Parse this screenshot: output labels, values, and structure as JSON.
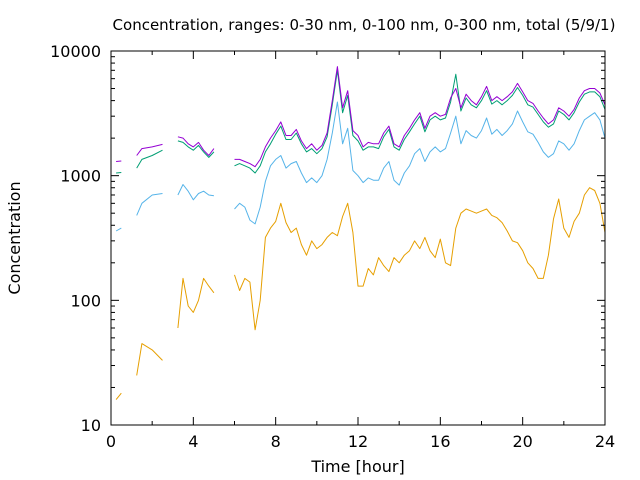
{
  "chart_data": {
    "type": "line",
    "title": "Concentration, ranges: 0-30 nm, 0-100 nm, 0-300 nm, total (5/9/1)",
    "xlabel": "Time [hour]",
    "ylabel": "Concentration",
    "xlim": [
      0,
      24
    ],
    "ylim": [
      10,
      10000
    ],
    "yscale": "log",
    "grid": false,
    "legend": "none",
    "x_ticks": [
      0,
      4,
      8,
      12,
      16,
      20,
      24
    ],
    "x_tick_labels": [
      "0",
      "4",
      "8",
      "12",
      "16",
      "20",
      "24"
    ],
    "y_ticks": [
      10,
      100,
      1000,
      10000
    ],
    "y_tick_labels": [
      "10",
      "100",
      "1000",
      "10000"
    ],
    "x": [
      0.25,
      0.5,
      1.0,
      1.25,
      1.5,
      2.0,
      2.5,
      3.0,
      3.25,
      3.5,
      3.75,
      4.0,
      4.25,
      4.5,
      4.75,
      5.0,
      5.5,
      6.0,
      6.25,
      6.5,
      6.75,
      7.0,
      7.25,
      7.5,
      7.75,
      8.0,
      8.25,
      8.5,
      8.75,
      9.0,
      9.25,
      9.5,
      9.75,
      10.0,
      10.25,
      10.5,
      10.75,
      11.0,
      11.25,
      11.5,
      11.75,
      12.0,
      12.25,
      12.5,
      12.75,
      13.0,
      13.25,
      13.5,
      13.75,
      14.0,
      14.25,
      14.5,
      14.75,
      15.0,
      15.25,
      15.5,
      15.75,
      16.0,
      16.25,
      16.5,
      16.75,
      17.0,
      17.25,
      17.5,
      17.75,
      18.0,
      18.25,
      18.5,
      18.75,
      19.0,
      19.25,
      19.5,
      19.75,
      20.0,
      20.25,
      20.5,
      20.75,
      21.0,
      21.25,
      21.5,
      21.75,
      22.0,
      22.25,
      22.5,
      22.75,
      23.0,
      23.25,
      23.5,
      23.75,
      24.0
    ],
    "series": [
      {
        "color": "#9400d3",
        "values": [
          1300,
          1310,
          null,
          1450,
          1650,
          1700,
          1780,
          null,
          2050,
          2000,
          1800,
          1700,
          1850,
          1600,
          1450,
          1650,
          null,
          1350,
          1350,
          1300,
          1250,
          1180,
          1350,
          1700,
          2000,
          2300,
          2700,
          2100,
          2100,
          2350,
          1900,
          1650,
          1800,
          1600,
          1750,
          2200,
          4000,
          7500,
          3500,
          4800,
          2300,
          2100,
          1700,
          1850,
          1800,
          1800,
          2200,
          2500,
          1800,
          1700,
          2100,
          2400,
          2800,
          3200,
          2400,
          3000,
          3200,
          3000,
          3100,
          4200,
          5000,
          3500,
          4500,
          4000,
          3700,
          4300,
          5200,
          4000,
          4300,
          4000,
          4300,
          4700,
          5500,
          4700,
          4000,
          3800,
          3300,
          2900,
          2600,
          2800,
          3500,
          3300,
          3000,
          3400,
          4200,
          4800,
          5000,
          5000,
          4600,
          3700
        ]
      },
      {
        "color": "#009e73",
        "values": [
          1050,
          1060,
          null,
          1150,
          1350,
          1450,
          1600,
          null,
          1900,
          1850,
          1700,
          1600,
          1750,
          1550,
          1400,
          1550,
          null,
          1200,
          1250,
          1200,
          1150,
          1050,
          1200,
          1550,
          1800,
          2150,
          2500,
          1950,
          1950,
          2200,
          1800,
          1550,
          1650,
          1500,
          1650,
          2050,
          3700,
          7000,
          3200,
          4400,
          2100,
          1900,
          1600,
          1700,
          1700,
          1650,
          2050,
          2350,
          1700,
          1600,
          1950,
          2250,
          2600,
          3000,
          2250,
          2800,
          3000,
          2800,
          2900,
          3900,
          6500,
          3300,
          4200,
          3700,
          3500,
          4000,
          4800,
          3750,
          4000,
          3700,
          4000,
          4400,
          5100,
          4400,
          3700,
          3550,
          3100,
          2700,
          2450,
          2600,
          3300,
          3100,
          2800,
          3200,
          3900,
          4500,
          4700,
          4700,
          4300,
          3400
        ]
      },
      {
        "color": "#56b4e9",
        "values": [
          360,
          380,
          null,
          480,
          600,
          700,
          720,
          null,
          700,
          850,
          750,
          640,
          720,
          750,
          700,
          690,
          null,
          540,
          600,
          560,
          440,
          410,
          560,
          900,
          1200,
          1350,
          1450,
          1150,
          1250,
          1300,
          1050,
          880,
          960,
          880,
          1000,
          1350,
          2200,
          3900,
          1800,
          2400,
          1100,
          1000,
          880,
          960,
          920,
          920,
          1150,
          1300,
          920,
          840,
          1050,
          1200,
          1500,
          1650,
          1300,
          1550,
          1700,
          1550,
          1650,
          2200,
          3000,
          1800,
          2300,
          2100,
          2000,
          2300,
          2900,
          2150,
          2350,
          2100,
          2300,
          2600,
          3300,
          2700,
          2250,
          2150,
          1850,
          1550,
          1400,
          1500,
          1900,
          1800,
          1600,
          1800,
          2300,
          2800,
          3000,
          3200,
          2800,
          2000
        ]
      },
      {
        "color": "#e69f00",
        "values": [
          16,
          18,
          null,
          25,
          45,
          40,
          33,
          null,
          60,
          150,
          90,
          80,
          100,
          150,
          130,
          115,
          null,
          160,
          120,
          150,
          140,
          58,
          100,
          320,
          380,
          430,
          600,
          420,
          350,
          380,
          280,
          230,
          300,
          260,
          280,
          320,
          350,
          330,
          470,
          600,
          350,
          130,
          130,
          180,
          160,
          220,
          190,
          170,
          220,
          200,
          230,
          250,
          300,
          260,
          320,
          250,
          220,
          310,
          200,
          190,
          380,
          500,
          540,
          520,
          500,
          520,
          540,
          480,
          460,
          420,
          360,
          300,
          290,
          250,
          200,
          180,
          150,
          150,
          230,
          450,
          650,
          380,
          320,
          430,
          500,
          700,
          800,
          760,
          600,
          350
        ]
      }
    ]
  }
}
